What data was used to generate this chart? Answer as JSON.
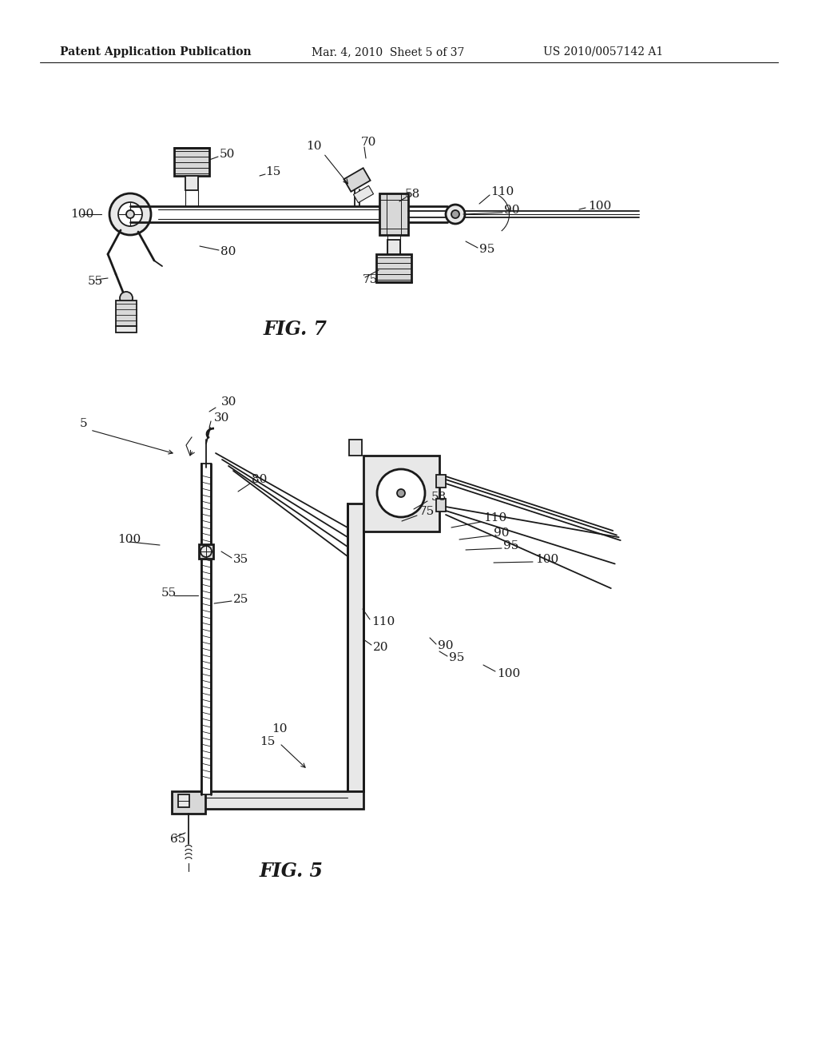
{
  "bg_color": "#ffffff",
  "header_text": "Patent Application Publication",
  "header_date": "Mar. 4, 2010  Sheet 5 of 37",
  "header_patent": "US 2010/0057142 A1",
  "fig7_title": "FIG. 7",
  "fig5_title": "FIG. 5",
  "lc": "#1a1a1a",
  "gray1": "#c8c8c8",
  "gray2": "#d8d8d8",
  "gray3": "#e8e8e8",
  "gray4": "#a0a0a0",
  "label_fontsize": 11,
  "header_fontsize": 10,
  "figtitle_fontsize": 17
}
